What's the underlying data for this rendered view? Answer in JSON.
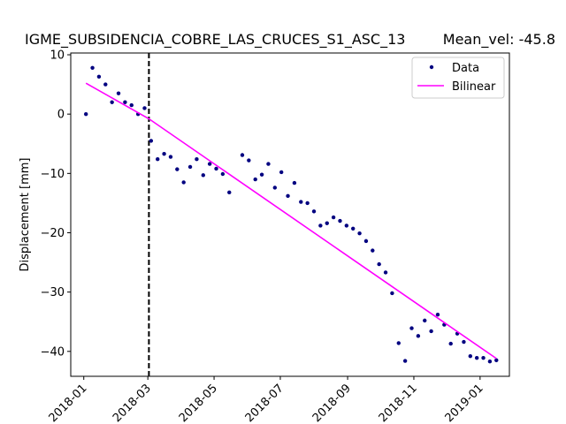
{
  "chart_data": {
    "type": "scatter",
    "title": "IGME_SUBSIDENCIA_COBRE_LAS_CRUCES_S1_ASC_13",
    "title_right": "Mean_vel: -45.8",
    "xlabel": "",
    "ylabel": "Displacement [mm]",
    "x_axis_kind": "date",
    "xlim": [
      "2017-12-20",
      "2019-01-28"
    ],
    "ylim": [
      -44.2,
      10.3
    ],
    "x_ticks": [
      "2018-01",
      "2018-03",
      "2018-05",
      "2018-07",
      "2018-09",
      "2018-11",
      "2019-01"
    ],
    "x_tick_dates": [
      "2018-01-01",
      "2018-03-01",
      "2018-05-01",
      "2018-07-01",
      "2018-09-01",
      "2018-11-01",
      "2019-01-01"
    ],
    "y_ticks": [
      10,
      0,
      -10,
      -20,
      -30,
      -40
    ],
    "y_tick_labels": [
      "10",
      "0",
      "−10",
      "−20",
      "−30",
      "−40"
    ],
    "grid": false,
    "legend_position": "top-right",
    "breakpoint_date": "2018-03-02",
    "colors": {
      "data": "#000080",
      "bilinear": "#ff00ff",
      "breakpoint": "#000000"
    },
    "series": [
      {
        "name": "Data",
        "kind": "points",
        "x": [
          "2018-01-03",
          "2018-01-09",
          "2018-01-15",
          "2018-01-21",
          "2018-01-27",
          "2018-02-02",
          "2018-02-08",
          "2018-02-14",
          "2018-02-20",
          "2018-02-26",
          "2018-03-04",
          "2018-03-10",
          "2018-03-16",
          "2018-03-22",
          "2018-03-28",
          "2018-04-03",
          "2018-04-09",
          "2018-04-15",
          "2018-04-21",
          "2018-04-27",
          "2018-05-03",
          "2018-05-09",
          "2018-05-15",
          "2018-05-27",
          "2018-06-02",
          "2018-06-08",
          "2018-06-14",
          "2018-06-20",
          "2018-06-26",
          "2018-07-02",
          "2018-07-08",
          "2018-07-14",
          "2018-07-20",
          "2018-07-26",
          "2018-08-01",
          "2018-08-07",
          "2018-08-13",
          "2018-08-19",
          "2018-08-25",
          "2018-08-31",
          "2018-09-06",
          "2018-09-12",
          "2018-09-18",
          "2018-09-24",
          "2018-09-30",
          "2018-10-06",
          "2018-10-12",
          "2018-10-18",
          "2018-10-24",
          "2018-10-30",
          "2018-11-05",
          "2018-11-11",
          "2018-11-17",
          "2018-11-23",
          "2018-11-29",
          "2018-12-05",
          "2018-12-11",
          "2018-12-17",
          "2018-12-23",
          "2018-12-29",
          "2019-01-04",
          "2019-01-10",
          "2019-01-16"
        ],
        "y": [
          0.0,
          7.8,
          6.3,
          5.0,
          2.0,
          3.5,
          2.0,
          1.5,
          0.0,
          1.0,
          -4.5,
          -7.6,
          -6.7,
          -7.2,
          -9.3,
          -11.5,
          -8.9,
          -7.6,
          -10.3,
          -8.4,
          -9.2,
          -10.1,
          -13.2,
          -6.9,
          -7.8,
          -11.0,
          -10.2,
          -8.4,
          -12.4,
          -9.8,
          -13.8,
          -11.6,
          -14.8,
          -15.0,
          -16.4,
          -18.8,
          -18.4,
          -17.4,
          -18.0,
          -18.8,
          -19.3,
          -20.1,
          -21.4,
          -23.0,
          -25.3,
          -26.7,
          -30.2,
          -38.6,
          -41.6,
          -36.1,
          -37.4,
          -34.8,
          -36.6,
          -33.8,
          -35.5,
          -38.7,
          -37.0,
          -38.4,
          -40.8,
          -41.1,
          -41.1,
          -41.7,
          -41.5
        ]
      },
      {
        "name": "Bilinear",
        "kind": "line",
        "x": [
          "2018-01-03",
          "2018-03-02",
          "2019-01-16"
        ],
        "y": [
          5.2,
          -0.8,
          -41.2
        ]
      }
    ]
  }
}
